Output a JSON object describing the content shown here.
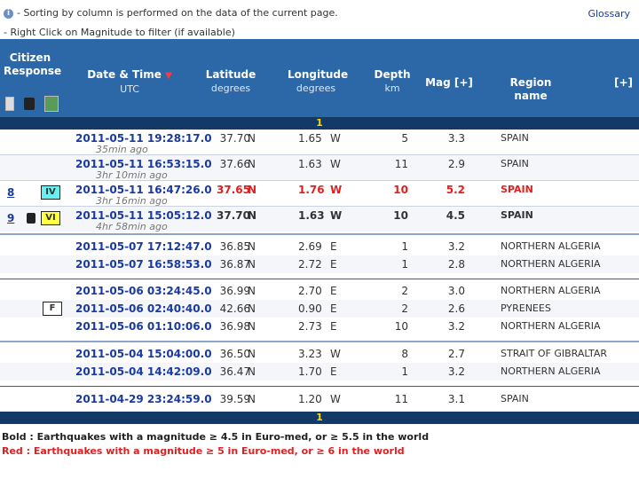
{
  "notes": {
    "sort_note": "- Sorting by column is performed on the data of the current page.",
    "filter_note": "- Right Click on Magnitude to filter (if available)",
    "glossary": "Glossary"
  },
  "header": {
    "citizen_line1": "Citizen",
    "citizen_line2": "Response",
    "date_title": "Date & Time",
    "date_sub": "UTC",
    "sort_arrow": "▼",
    "lat_title": "Latitude",
    "lat_sub": "degrees",
    "lon_title": "Longitude",
    "lon_sub": "degrees",
    "depth_title": "Depth",
    "depth_sub": "km",
    "mag_title": "Mag [+]",
    "region_title": "Region name",
    "plus": "[+]"
  },
  "page_top": "1",
  "page_bottom": "1",
  "rows": [
    {
      "date": "2011-05-11  19:28:17.0",
      "ago": "35min ago",
      "lat": "37.70",
      "latd": "N",
      "lon": "1.65",
      "lond": "W",
      "depth": "5",
      "mag": "3.3",
      "region": "SPAIN"
    },
    {
      "date": "2011-05-11  16:53:15.0",
      "ago": "3hr 10min ago",
      "lat": "37.66",
      "latd": "N",
      "lon": "1.63",
      "lond": "W",
      "depth": "11",
      "mag": "2.9",
      "region": "SPAIN"
    },
    {
      "date": "2011-05-11  16:47:26.0",
      "ago": "3hr 16min ago",
      "lat": "37.65",
      "latd": "N",
      "lon": "1.76",
      "lond": "W",
      "depth": "10",
      "mag": "5.2",
      "region": "SPAIN",
      "num": "8",
      "intensity": "IV"
    },
    {
      "date": "2011-05-11  15:05:12.0",
      "ago": "4hr 58min ago",
      "lat": "37.70",
      "latd": "N",
      "lon": "1.63",
      "lond": "W",
      "depth": "10",
      "mag": "4.5",
      "region": "SPAIN",
      "num": "9",
      "intensity": "VI"
    },
    {
      "date": "2011-05-07  17:12:47.0",
      "lat": "36.85",
      "latd": "N",
      "lon": "2.69",
      "lond": "E",
      "depth": "1",
      "mag": "3.2",
      "region": "NORTHERN ALGERIA"
    },
    {
      "date": "2011-05-07  16:58:53.0",
      "lat": "36.87",
      "latd": "N",
      "lon": "2.72",
      "lond": "E",
      "depth": "1",
      "mag": "2.8",
      "region": "NORTHERN ALGERIA"
    },
    {
      "date": "2011-05-06  03:24:45.0",
      "lat": "36.99",
      "latd": "N",
      "lon": "2.70",
      "lond": "E",
      "depth": "2",
      "mag": "3.0",
      "region": "NORTHERN ALGERIA"
    },
    {
      "date": "2011-05-06  02:40:40.0",
      "lat": "42.66",
      "latd": "N",
      "lon": "0.90",
      "lond": "E",
      "depth": "2",
      "mag": "2.6",
      "region": "PYRENEES",
      "intensity": "F"
    },
    {
      "date": "2011-05-06  01:10:06.0",
      "lat": "36.98",
      "latd": "N",
      "lon": "2.73",
      "lond": "E",
      "depth": "10",
      "mag": "3.2",
      "region": "NORTHERN ALGERIA"
    },
    {
      "date": "2011-05-04  15:04:00.0",
      "lat": "36.50",
      "latd": "N",
      "lon": "3.23",
      "lond": "W",
      "depth": "8",
      "mag": "2.7",
      "region": "STRAIT OF GIBRALTAR"
    },
    {
      "date": "2011-05-04  14:42:09.0",
      "lat": "36.47",
      "latd": "N",
      "lon": "1.70",
      "lond": "E",
      "depth": "1",
      "mag": "3.2",
      "region": "NORTHERN ALGERIA"
    },
    {
      "date": "2011-04-29  23:24:59.0",
      "lat": "39.59",
      "latd": "N",
      "lon": "1.20",
      "lond": "W",
      "depth": "11",
      "mag": "3.1",
      "region": "SPAIN"
    }
  ],
  "legend": {
    "bold": "Bold : Earthquakes with a magnitude ≥ 4.5 in Euro-med, or ≥ 5.5 in the world",
    "red": "Red : Earthquakes with a magnitude ≥ 5 in Euro-med, or ≥ 6 in the world"
  },
  "colors": {
    "header_bg": "#2c68a8",
    "page_bar": "#133a66",
    "date_link": "#1a3aa0",
    "red": "#e02020"
  }
}
